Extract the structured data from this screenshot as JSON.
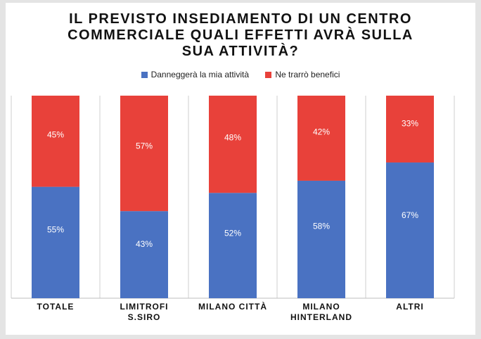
{
  "chart_data": {
    "type": "bar",
    "stacked": true,
    "title_lines": [
      "IL PREVISTO INSEDIAMENTO DI UN CENTRO",
      "COMMERCIALE QUALI EFFETTI AVRÀ SULLA",
      "SUA ATTIVITÀ?"
    ],
    "categories": [
      [
        "TOTALE"
      ],
      [
        "LIMITROFI",
        "S.SIRO"
      ],
      [
        "MILANO CITTÀ"
      ],
      [
        "MILANO",
        "HINTERLAND"
      ],
      [
        "ALTRI"
      ]
    ],
    "series": [
      {
        "name": "Danneggerà la mia attività",
        "color": "#4a72c2",
        "values": [
          55,
          43,
          52,
          58,
          67
        ],
        "labels": [
          "55%",
          "43%",
          "52%",
          "58%",
          "67%"
        ]
      },
      {
        "name": "Ne trarrò benefici",
        "color": "#e8413a",
        "values": [
          45,
          57,
          48,
          42,
          33
        ],
        "labels": [
          "45%",
          "57%",
          "48%",
          "42%",
          "33%"
        ]
      }
    ],
    "ylim": [
      0,
      100
    ],
    "legend_position": "top"
  }
}
